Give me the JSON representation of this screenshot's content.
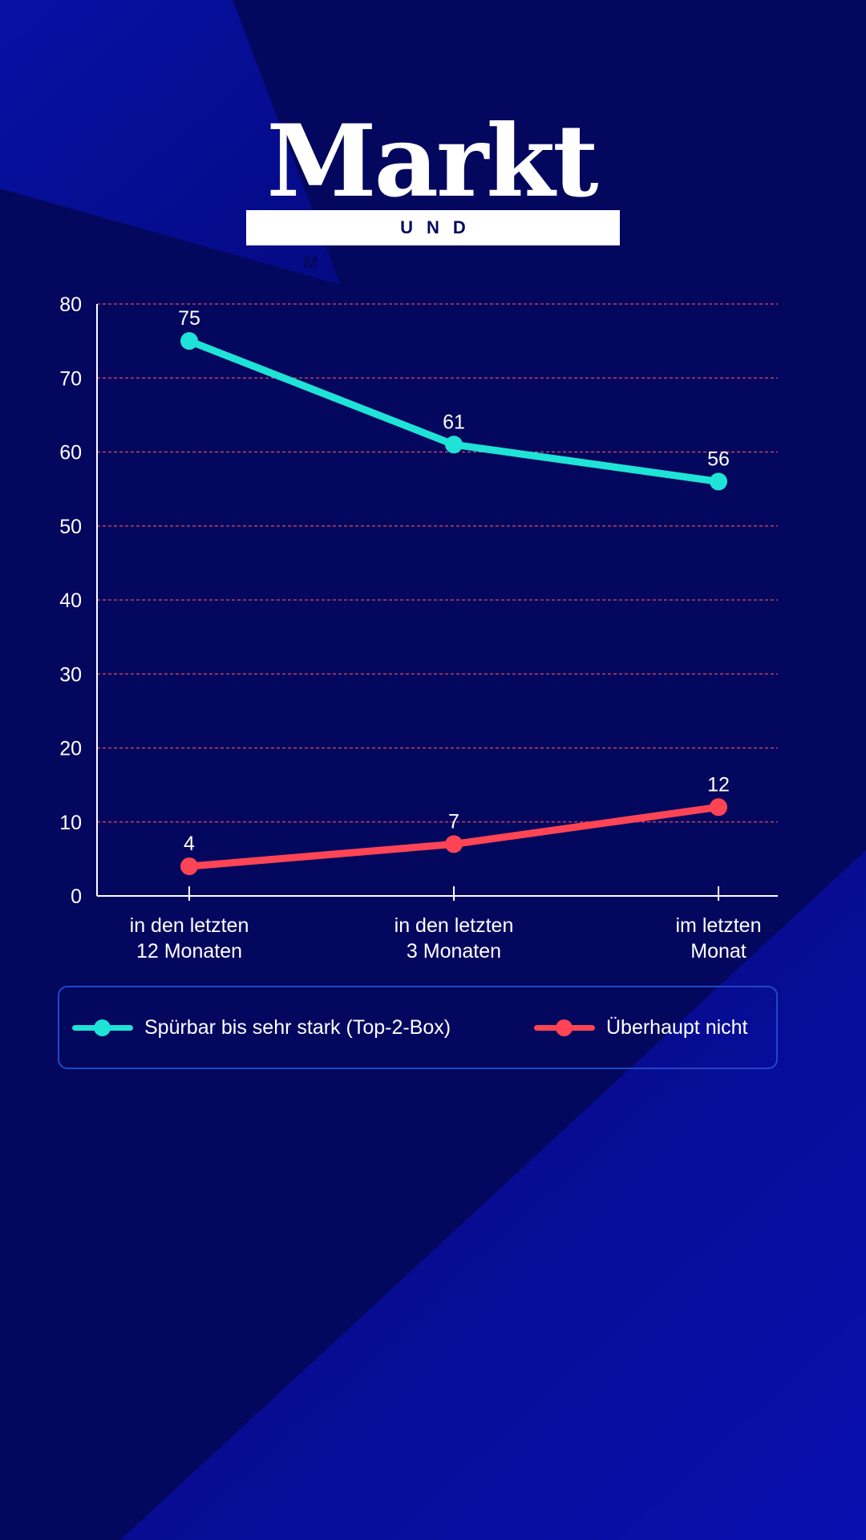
{
  "logo": {
    "title": "Markt",
    "subtitle": "UND MITTELSTAND"
  },
  "colors": {
    "background": "#04075e",
    "series_top2": "#1ee3d6",
    "series_none": "#ff4455",
    "grid": "#ff4f5e",
    "legend_border": "#1f48c8"
  },
  "chart_data": {
    "type": "line",
    "categories": [
      [
        "in den letzten",
        "12 Monaten"
      ],
      [
        "in den letzten",
        "3 Monaten"
      ],
      [
        "im letzten",
        "Monat"
      ]
    ],
    "series": [
      {
        "name": "Spürbar bis sehr stark (Top-2-Box)",
        "values": [
          75,
          61,
          56
        ]
      },
      {
        "name": "Überhaupt nicht",
        "values": [
          4,
          7,
          12
        ]
      }
    ],
    "ylim": [
      0,
      80
    ],
    "yticks": [
      0,
      10,
      20,
      30,
      40,
      50,
      60,
      70,
      80
    ],
    "grid": true,
    "grid_style": "dashed",
    "legend_position": "bottom",
    "title": "",
    "xlabel": "",
    "ylabel": ""
  }
}
